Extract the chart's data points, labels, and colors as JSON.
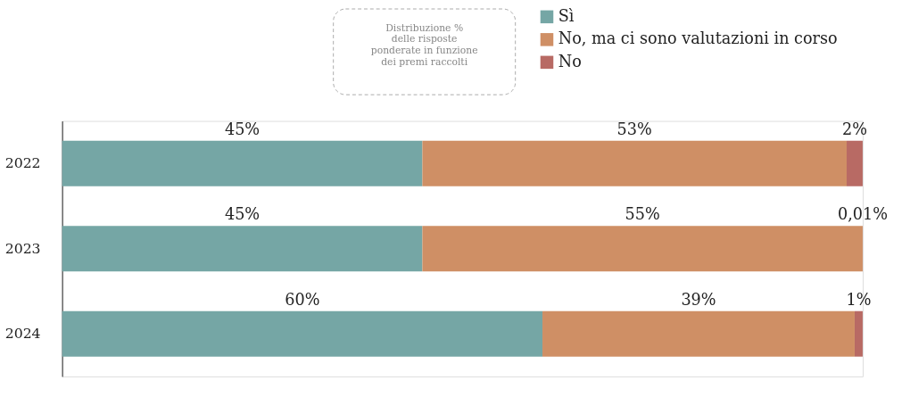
{
  "chart_data": {
    "type": "bar",
    "orientation": "horizontal",
    "stacked": true,
    "categories": [
      "2022",
      "2023",
      "2024"
    ],
    "series": [
      {
        "name": "Sì",
        "color": "#75a6a5",
        "values": [
          45,
          45,
          60
        ],
        "value_labels": [
          "45%",
          "45%",
          "60%"
        ]
      },
      {
        "name": "No, ma ci sono valutazioni in corso",
        "color": "#cf8f65",
        "values": [
          53,
          55,
          39
        ],
        "value_labels": [
          "53%",
          "55%",
          "39%"
        ]
      },
      {
        "name": "No",
        "color": "#b86a64",
        "values": [
          2,
          0.01,
          1
        ],
        "value_labels": [
          "2%",
          "0,01%",
          "1%"
        ]
      }
    ],
    "tick_labels": "y",
    "grid": false,
    "legend": "top",
    "data_labels": true,
    "annotations": [
      "Distribuzione %\ndelle risposte\nponderate in funzione\ndei premi raccolti"
    ]
  }
}
